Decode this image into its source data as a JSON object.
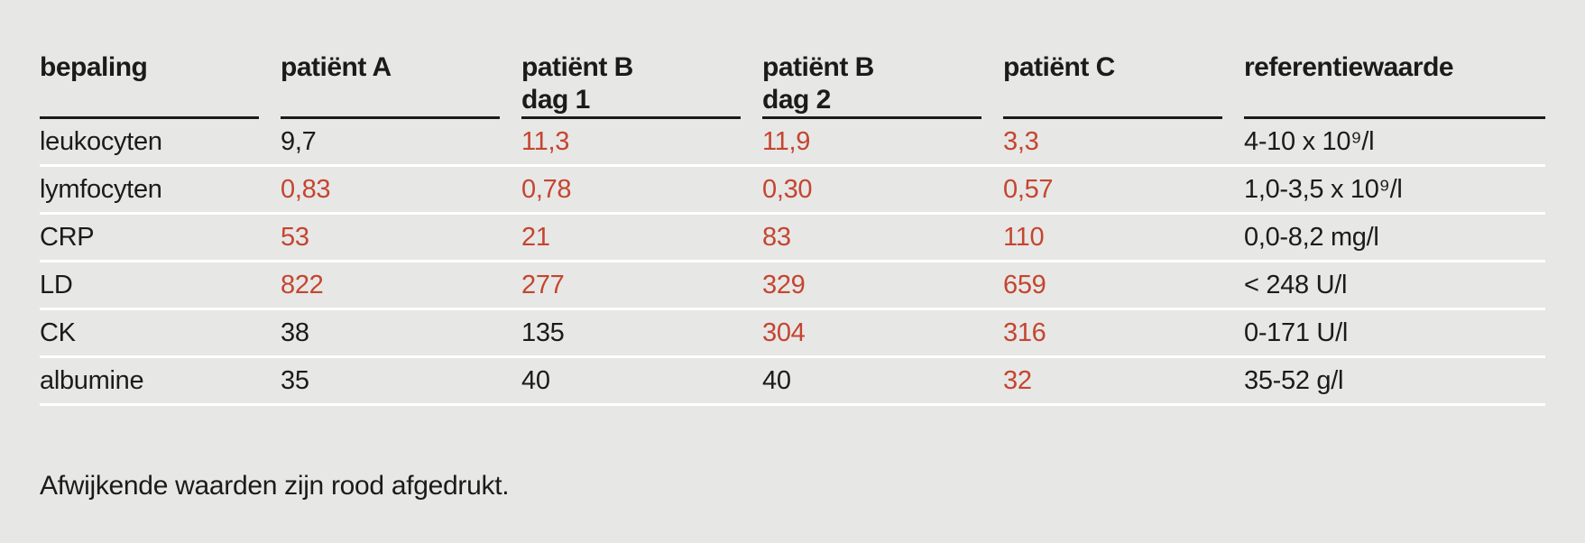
{
  "colors": {
    "background": "#e7e7e6",
    "text": "#1b1b1a",
    "abnormal_red": "#c5452f",
    "row_separator": "#ffffff",
    "header_rule": "#1b1b1a"
  },
  "table": {
    "headers": [
      {
        "label": "bepaling",
        "sublabel": ""
      },
      {
        "label": "patiënt A",
        "sublabel": ""
      },
      {
        "label": "patiënt B",
        "sublabel": "dag 1"
      },
      {
        "label": "patiënt B",
        "sublabel": "dag 2"
      },
      {
        "label": "patiënt C",
        "sublabel": ""
      },
      {
        "label": "referentiewaarde",
        "sublabel": ""
      }
    ],
    "rows": [
      {
        "name": "leukocyten",
        "cells": [
          {
            "value": "9,7",
            "abnormal": false
          },
          {
            "value": "11,3",
            "abnormal": true
          },
          {
            "value": "11,9",
            "abnormal": true
          },
          {
            "value": "3,3",
            "abnormal": true
          }
        ],
        "reference": "4-10 x 10⁹/l"
      },
      {
        "name": "lymfocyten",
        "cells": [
          {
            "value": "0,83",
            "abnormal": true
          },
          {
            "value": "0,78",
            "abnormal": true
          },
          {
            "value": "0,30",
            "abnormal": true
          },
          {
            "value": "0,57",
            "abnormal": true
          }
        ],
        "reference": "1,0-3,5 x 10⁹/l"
      },
      {
        "name": "CRP",
        "cells": [
          {
            "value": "53",
            "abnormal": true
          },
          {
            "value": "21",
            "abnormal": true
          },
          {
            "value": "83",
            "abnormal": true
          },
          {
            "value": "110",
            "abnormal": true
          }
        ],
        "reference": "0,0-8,2 mg/l"
      },
      {
        "name": "LD",
        "cells": [
          {
            "value": "822",
            "abnormal": true
          },
          {
            "value": "277",
            "abnormal": true
          },
          {
            "value": "329",
            "abnormal": true
          },
          {
            "value": "659",
            "abnormal": true
          }
        ],
        "reference": "< 248 U/l"
      },
      {
        "name": "CK",
        "cells": [
          {
            "value": "38",
            "abnormal": false
          },
          {
            "value": "135",
            "abnormal": false
          },
          {
            "value": "304",
            "abnormal": true
          },
          {
            "value": "316",
            "abnormal": true
          }
        ],
        "reference": "0-171 U/l"
      },
      {
        "name": "albumine",
        "cells": [
          {
            "value": "35",
            "abnormal": false
          },
          {
            "value": "40",
            "abnormal": false
          },
          {
            "value": "40",
            "abnormal": false
          },
          {
            "value": "32",
            "abnormal": true
          }
        ],
        "reference": "35-52 g/l"
      }
    ]
  },
  "footnote": "Afwijkende waarden zijn rood afgedrukt.",
  "chart_data": {
    "type": "table",
    "columns": [
      "bepaling",
      "patiënt A",
      "patiënt B dag 1",
      "patiënt B dag 2",
      "patiënt C",
      "referentiewaarde"
    ],
    "rows": [
      [
        "leukocyten",
        "9,7",
        "11,3",
        "11,9",
        "3,3",
        "4-10 x 10⁹/l"
      ],
      [
        "lymfocyten",
        "0,83",
        "0,78",
        "0,30",
        "0,57",
        "1,0-3,5 x 10⁹/l"
      ],
      [
        "CRP",
        "53",
        "21",
        "83",
        "110",
        "0,0-8,2 mg/l"
      ],
      [
        "LD",
        "822",
        "277",
        "329",
        "659",
        "< 248 U/l"
      ],
      [
        "CK",
        "38",
        "135",
        "304",
        "316",
        "0-171 U/l"
      ],
      [
        "albumine",
        "35",
        "40",
        "40",
        "32",
        "35-52 g/l"
      ]
    ],
    "note": "Afwijkende waarden zijn rood afgedrukt."
  }
}
